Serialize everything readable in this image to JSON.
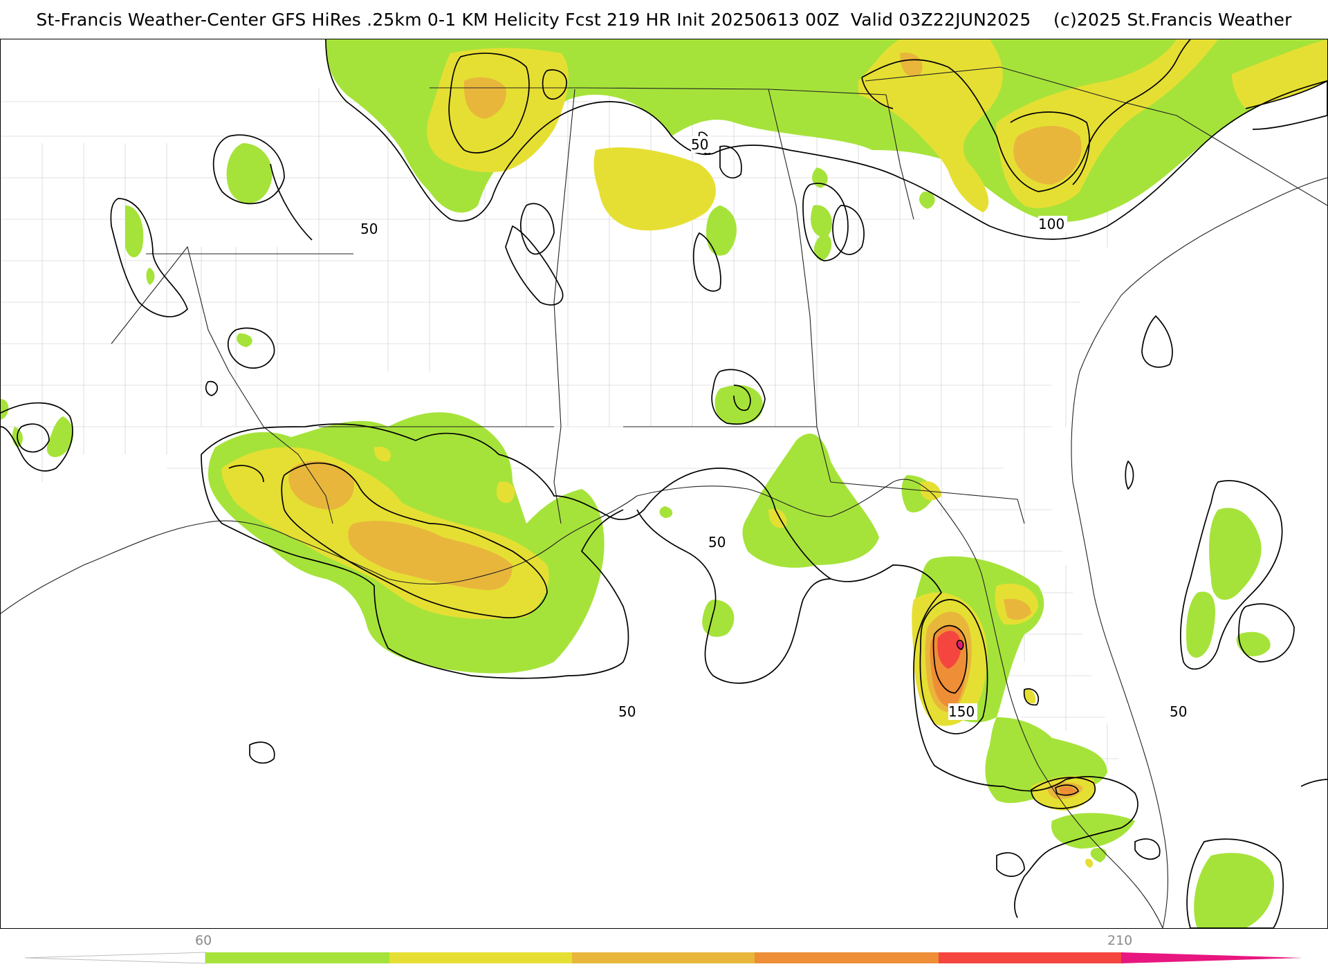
{
  "title": "St-Francis Weather-Center GFS HiRes .25km 0-1 KM Helicity Fcst 219 HR Init 20250613 00Z  Valid 03Z22JUN2025    (c)2025 St.Francis Weather",
  "colors": {
    "level1": "#a6e33a",
    "level2": "#e6df33",
    "level3": "#e9b63c",
    "level4": "#ee8e36",
    "level5": "#f4463f",
    "level6": "#e8167f",
    "contour": "#000000",
    "state_border": "#222222",
    "county_border": "#d0d0d0"
  },
  "contour_labels": [
    {
      "id": "c50-a",
      "text": "50"
    },
    {
      "id": "c50-b",
      "text": "50"
    },
    {
      "id": "c50-c",
      "text": "50"
    },
    {
      "id": "c50-d",
      "text": "50"
    },
    {
      "id": "c50-e",
      "text": "50"
    },
    {
      "id": "c100",
      "text": "100"
    },
    {
      "id": "c150",
      "text": "150"
    }
  ],
  "colorbar": {
    "ticks": [
      {
        "label": "60",
        "value": 60
      },
      {
        "label": "210",
        "value": 210
      }
    ]
  }
}
